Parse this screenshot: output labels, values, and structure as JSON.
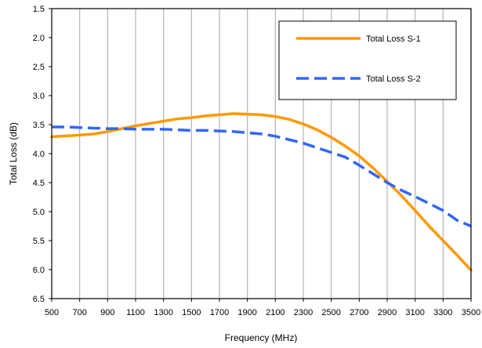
{
  "chart_data": {
    "type": "line",
    "xlabel": "Frequency (MHz)",
    "ylabel": "Total Loss (dB)",
    "xlim": [
      500,
      3500
    ],
    "ylim": [
      1.5,
      6.5
    ],
    "y_inverted": true,
    "grid": "vertical",
    "legend_position": "top-right",
    "x_ticks": [
      "500",
      "700",
      "900",
      "1100",
      "1300",
      "1500",
      "1700",
      "1900",
      "2100",
      "2300",
      "2500",
      "2700",
      "2900",
      "3100",
      "3300",
      "3500"
    ],
    "y_ticks": [
      "1.5",
      "2.0",
      "2.5",
      "3.0",
      "3.5",
      "4.0",
      "4.5",
      "5.0",
      "5.5",
      "6.0",
      "6.5"
    ],
    "series": [
      {
        "name": "Total Loss S-1",
        "color": "#FF9900",
        "dash": "solid",
        "x": [
          500,
          700,
          800,
          900,
          1000,
          1100,
          1200,
          1300,
          1400,
          1500,
          1600,
          1700,
          1800,
          1900,
          2000,
          2100,
          2200,
          2300,
          2400,
          2500,
          2600,
          2700,
          2800,
          2900,
          3000,
          3100,
          3200,
          3300,
          3400,
          3500
        ],
        "y": [
          3.71,
          3.68,
          3.66,
          3.62,
          3.57,
          3.52,
          3.48,
          3.44,
          3.4,
          3.38,
          3.35,
          3.33,
          3.31,
          3.32,
          3.33,
          3.36,
          3.41,
          3.49,
          3.59,
          3.72,
          3.87,
          4.04,
          4.25,
          4.48,
          4.72,
          4.98,
          5.25,
          5.5,
          5.75,
          6.01
        ]
      },
      {
        "name": "Total Loss S-2",
        "color": "#3366FF",
        "dash": "dashed",
        "x": [
          500,
          600,
          700,
          800,
          900,
          1000,
          1100,
          1200,
          1300,
          1400,
          1500,
          1600,
          1700,
          1800,
          1900,
          2000,
          2100,
          2200,
          2300,
          2400,
          2500,
          2600,
          2700,
          2800,
          2900,
          3000,
          3100,
          3200,
          3300,
          3400,
          3500
        ],
        "y": [
          3.54,
          3.54,
          3.55,
          3.56,
          3.57,
          3.57,
          3.58,
          3.58,
          3.58,
          3.59,
          3.6,
          3.6,
          3.61,
          3.62,
          3.64,
          3.66,
          3.7,
          3.76,
          3.82,
          3.9,
          3.98,
          4.06,
          4.2,
          4.35,
          4.5,
          4.63,
          4.74,
          4.86,
          4.98,
          5.15,
          5.25
        ]
      }
    ]
  }
}
